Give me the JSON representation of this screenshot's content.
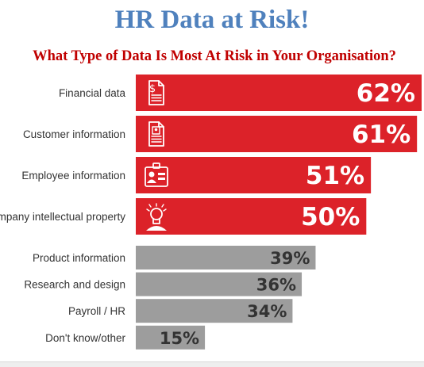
{
  "title": "HR Data at Risk!",
  "subtitle": "What Type of Data Is Most At Risk in Your Organisation?",
  "colors": {
    "title": "#4f81bd",
    "subtitle": "#c00000",
    "highlight": "#dc2229",
    "muted": "#9d9d9d"
  },
  "chart_data": {
    "type": "bar",
    "orientation": "horizontal",
    "title": "What Type of Data Is Most At Risk in Your Organisation?",
    "categories": [
      "Financial data",
      "Customer information",
      "Employee information",
      "Company intellectual property",
      "Product information",
      "Research and design",
      "Payroll / HR",
      "Don't know/other"
    ],
    "values": [
      62,
      61,
      51,
      50,
      39,
      36,
      34,
      15
    ],
    "value_labels": [
      "62%",
      "61%",
      "51%",
      "50%",
      "39%",
      "36%",
      "34%",
      "15%"
    ],
    "icons": [
      "invoice-icon",
      "customer-document-icon",
      "id-badge-icon",
      "lightbulb-icon",
      null,
      null,
      null,
      null
    ],
    "bar_colors": [
      "#dc2229",
      "#dc2229",
      "#dc2229",
      "#dc2229",
      "#9d9d9d",
      "#9d9d9d",
      "#9d9d9d",
      "#9d9d9d"
    ],
    "xlim": [
      0,
      62
    ],
    "grid": false
  }
}
